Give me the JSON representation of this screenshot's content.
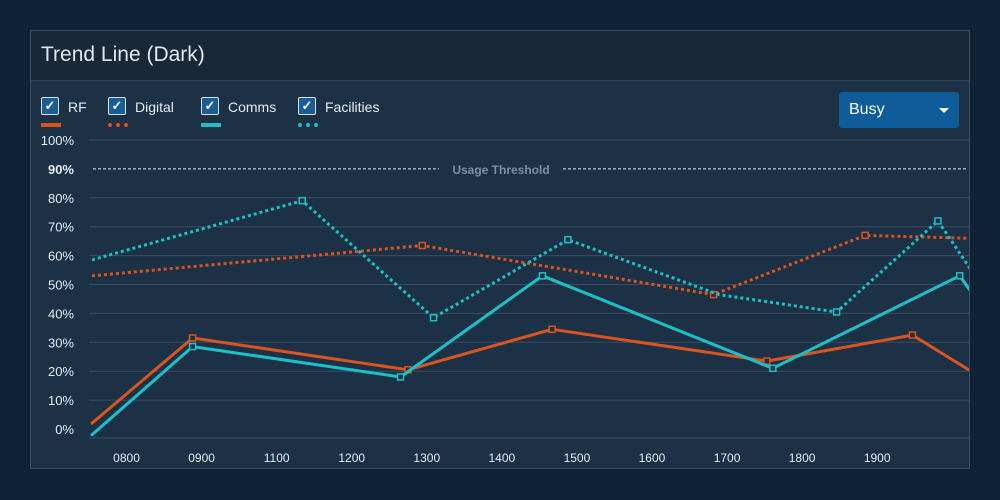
{
  "panel": {
    "title": "Trend Line (Dark)",
    "dropdown": {
      "selected": "Busy"
    }
  },
  "legend": [
    {
      "name": "RF",
      "color": "#d9541e",
      "dashed": false
    },
    {
      "name": "Digital",
      "color": "#d9541e",
      "dashed": true
    },
    {
      "name": "Comms",
      "color": "#1cc1c8",
      "dashed": false
    },
    {
      "name": "Facilities",
      "color": "#1cc1c8",
      "dashed": true
    }
  ],
  "chart_data": {
    "type": "line",
    "title": "Trend Line (Dark)",
    "xlabel": "",
    "ylabel": "",
    "ylim": [
      0,
      100
    ],
    "yticks": [
      "0%",
      "10%",
      "20%",
      "30%",
      "40%",
      "50%",
      "60%",
      "70%",
      "80%",
      "90%",
      "100%"
    ],
    "xlim": [
      750,
      1925
    ],
    "xticks": [
      {
        "label": "0800",
        "value": 800
      },
      {
        "label": "0900",
        "value": 900
      },
      {
        "label": "1100",
        "value": 1000
      },
      {
        "label": "1200",
        "value": 1100
      },
      {
        "label": "1300",
        "value": 1200
      },
      {
        "label": "1400",
        "value": 1300
      },
      {
        "label": "1500",
        "value": 1400
      },
      {
        "label": "1600",
        "value": 1500
      },
      {
        "label": "1700",
        "value": 1600
      },
      {
        "label": "1800",
        "value": 1700
      },
      {
        "label": "1900",
        "value": 1800
      }
    ],
    "threshold": {
      "value": 90,
      "label": "Usage Threshold"
    },
    "series": [
      {
        "name": "RF",
        "color": "#d9541e",
        "dashed": false,
        "points": [
          [
            754,
            2
          ],
          [
            888,
            31.5
          ],
          [
            1175,
            20.5
          ],
          [
            1367,
            34.5
          ],
          [
            1653,
            23.5
          ],
          [
            1847,
            32.5
          ],
          [
            1925,
            20
          ]
        ],
        "markers": [
          false,
          true,
          true,
          true,
          true,
          true,
          false
        ]
      },
      {
        "name": "Digital",
        "color": "#d9541e",
        "dashed": true,
        "points": [
          [
            754,
            53
          ],
          [
            1194,
            63.5
          ],
          [
            1582,
            46.5
          ],
          [
            1784,
            67
          ],
          [
            1925,
            66
          ]
        ],
        "markers": [
          false,
          true,
          true,
          true,
          false
        ]
      },
      {
        "name": "Comms",
        "color": "#1cc1c8",
        "dashed": false,
        "points": [
          [
            754,
            -2
          ],
          [
            888,
            28.5
          ],
          [
            1165,
            18
          ],
          [
            1354,
            53
          ],
          [
            1661,
            21
          ],
          [
            1910,
            53
          ],
          [
            1925,
            47.5
          ]
        ],
        "markers": [
          false,
          true,
          true,
          true,
          true,
          true,
          false
        ]
      },
      {
        "name": "Facilities",
        "color": "#1cc1c8",
        "dashed": true,
        "points": [
          [
            754,
            58.5
          ],
          [
            1034,
            79
          ],
          [
            1209,
            38.5
          ],
          [
            1388,
            65.5
          ],
          [
            1589,
            46.5
          ],
          [
            1746,
            40.5
          ],
          [
            1881,
            72
          ],
          [
            1925,
            55
          ]
        ],
        "markers": [
          false,
          true,
          true,
          true,
          false,
          true,
          true,
          false
        ]
      }
    ]
  }
}
